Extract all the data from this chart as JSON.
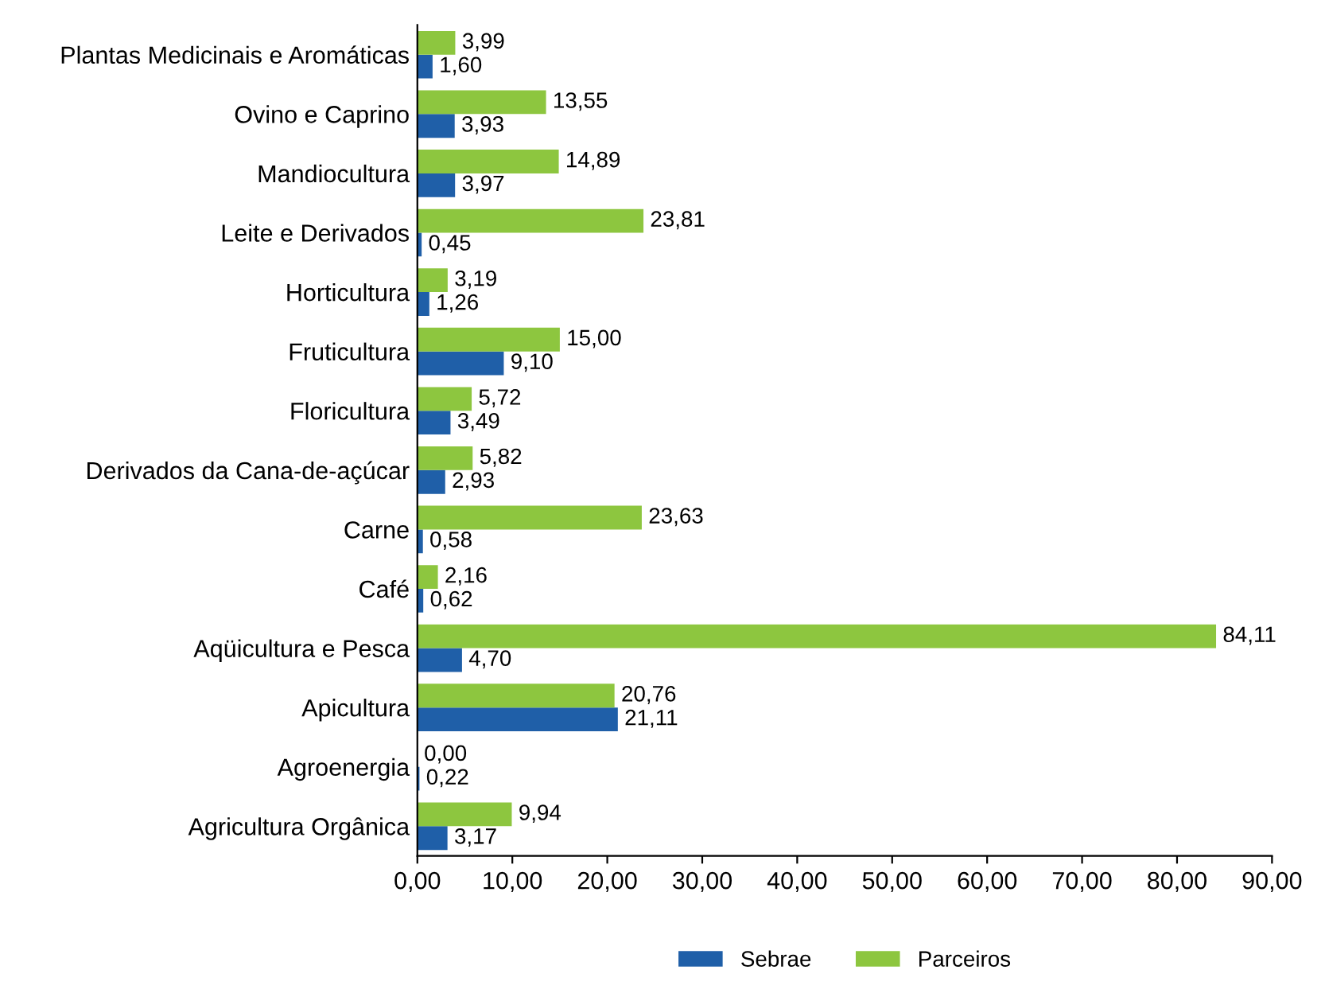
{
  "chart_data": {
    "type": "bar",
    "orientation": "horizontal",
    "categories": [
      "Plantas Medicinais e Aromáticas",
      "Ovino e Caprino",
      "Mandiocultura",
      "Leite e Derivados",
      "Horticultura",
      "Fruticultura",
      "Floricultura",
      "Derivados da Cana-de-açúcar",
      "Carne",
      "Café",
      "Aqüicultura e Pesca",
      "Apicultura",
      "Agroenergia",
      "Agricultura Orgânica"
    ],
    "series": [
      {
        "name": "Sebrae",
        "color": "#1f5fa8",
        "values": [
          1.6,
          3.93,
          3.97,
          0.45,
          1.26,
          9.1,
          3.49,
          2.93,
          0.58,
          0.62,
          4.7,
          21.11,
          0.22,
          3.17
        ],
        "value_labels": [
          "1,60",
          "3,93",
          "3,97",
          "0,45",
          "1,26",
          "9,10",
          "3,49",
          "2,93",
          "0,58",
          "0,62",
          "4,70",
          "21,11",
          "0,22",
          "3,17"
        ]
      },
      {
        "name": "Parceiros",
        "color": "#8dc63f",
        "values": [
          3.99,
          13.55,
          14.89,
          23.81,
          3.19,
          15.0,
          5.72,
          5.82,
          23.63,
          2.16,
          84.11,
          20.76,
          0.0,
          9.94
        ],
        "value_labels": [
          "3,99",
          "13,55",
          "14,89",
          "23,81",
          "3,19",
          "15,00",
          "5,72",
          "5,82",
          "23,63",
          "2,16",
          "84,11",
          "20,76",
          "0,00",
          "9,94"
        ]
      }
    ],
    "xlim": [
      0,
      90
    ],
    "xticks": [
      {
        "value": 0,
        "label": "0,00"
      },
      {
        "value": 10,
        "label": "10,00"
      },
      {
        "value": 20,
        "label": "20,00"
      },
      {
        "value": 30,
        "label": "30,00"
      },
      {
        "value": 40,
        "label": "40,00"
      },
      {
        "value": 50,
        "label": "50,00"
      },
      {
        "value": 60,
        "label": "60,00"
      },
      {
        "value": 70,
        "label": "70,00"
      },
      {
        "value": 80,
        "label": "80,00"
      },
      {
        "value": 90,
        "label": "90,00"
      }
    ],
    "legend": "bottom",
    "grid": false
  }
}
